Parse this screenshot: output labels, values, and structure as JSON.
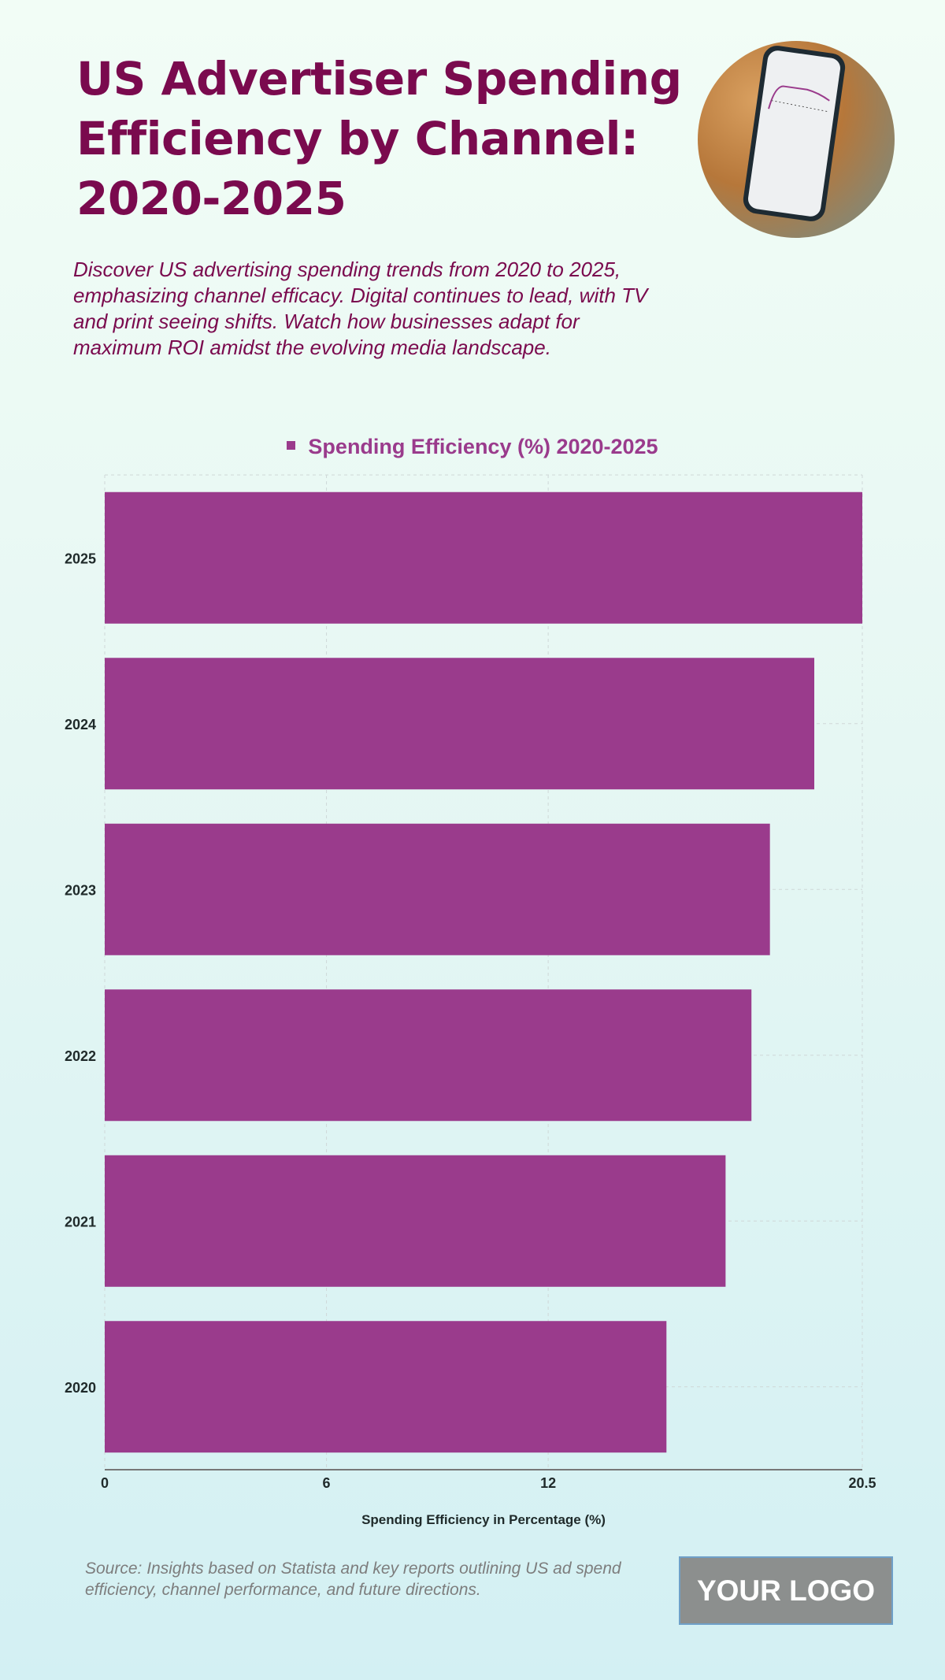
{
  "header": {
    "title": "US Advertiser Spending Efficiency by Channel: 2020-2025",
    "description": "Discover US advertising spending trends from 2020 to 2025, emphasizing channel efficacy. Digital continues to lead, with TV and print seeing shifts. Watch how businesses adapt for maximum ROI amidst the evolving media landscape."
  },
  "chart_data": {
    "type": "bar",
    "orientation": "horizontal",
    "categories": [
      "2025",
      "2024",
      "2023",
      "2022",
      "2021",
      "2020"
    ],
    "series": [
      {
        "name": "Spending Efficiency (%) 2020-2025",
        "values": [
          20.5,
          19.2,
          18.0,
          17.5,
          16.8,
          15.2
        ],
        "color": "#9a3b8c"
      }
    ],
    "xlabel": "Spending Efficiency in Percentage (%)",
    "ylabel": "",
    "xlim": [
      0,
      20.5
    ],
    "xticks": [
      "0",
      "6",
      "12",
      "20.5"
    ],
    "xtick_values": [
      0,
      6,
      12,
      20.5
    ],
    "grid": true,
    "legend_placement": "top-center"
  },
  "footer": {
    "source": "Source: Insights based on Statista and key reports outlining US ad spend efficiency, channel performance, and future directions.",
    "logo": "YOUR LOGO"
  }
}
